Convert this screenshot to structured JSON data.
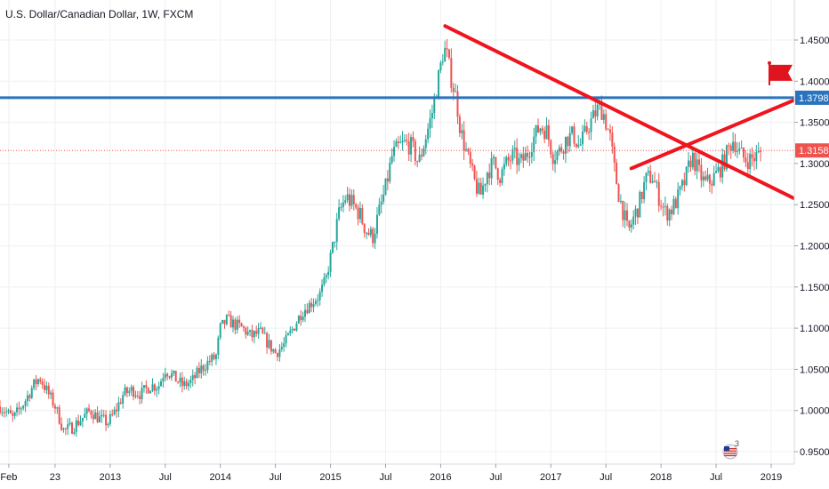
{
  "chart_data": {
    "type": "candlestick",
    "title": "U.S. Dollar/Canadian Dollar, 1W, FXCM",
    "xlabel": "",
    "ylabel": "",
    "ylim": [
      0.94,
      1.48
    ],
    "grid": true,
    "y_ticks": [
      "1.45000",
      "1.40000",
      "1.35000",
      "1.30000",
      "1.25000",
      "1.20000",
      "1.15000",
      "1.10000",
      "1.05000",
      "1.00000",
      "0.95000"
    ],
    "y_tick_values": [
      1.45,
      1.4,
      1.35,
      1.3,
      1.25,
      1.2,
      1.15,
      1.1,
      1.05,
      1.0,
      0.95
    ],
    "x_ticks": [
      "Feb",
      "23",
      "2013",
      "Jul",
      "2014",
      "Jul",
      "2015",
      "Jul",
      "2016",
      "Jul",
      "2017",
      "Jul",
      "2018",
      "Jul",
      "2019"
    ],
    "x_tick_values": [
      2012.08,
      2012.5,
      2013.0,
      2013.5,
      2014.0,
      2014.5,
      2015.0,
      2015.5,
      2016.0,
      2016.5,
      2017.0,
      2017.5,
      2018.0,
      2018.5,
      2019.0
    ],
    "xlim": [
      2012.0,
      2019.55
    ],
    "up_color": "#26a69a",
    "down_color": "#ef5350",
    "path": [
      [
        2012.0,
        1.005
      ],
      [
        2012.12,
        0.99
      ],
      [
        2012.22,
        1.01
      ],
      [
        2012.3,
        1.03
      ],
      [
        2012.36,
        1.04
      ],
      [
        2012.42,
        1.025
      ],
      [
        2012.5,
        1.005
      ],
      [
        2012.58,
        0.975
      ],
      [
        2012.66,
        0.98
      ],
      [
        2012.74,
        0.99
      ],
      [
        2012.82,
        1.0
      ],
      [
        2012.9,
        0.99
      ],
      [
        2012.98,
        0.985
      ],
      [
        2013.05,
        1.0
      ],
      [
        2013.12,
        1.02
      ],
      [
        2013.2,
        1.025
      ],
      [
        2013.28,
        1.02
      ],
      [
        2013.36,
        1.03
      ],
      [
        2013.44,
        1.03
      ],
      [
        2013.5,
        1.05
      ],
      [
        2013.58,
        1.04
      ],
      [
        2013.66,
        1.03
      ],
      [
        2013.74,
        1.035
      ],
      [
        2013.82,
        1.05
      ],
      [
        2013.9,
        1.06
      ],
      [
        2013.96,
        1.065
      ],
      [
        2014.0,
        1.1
      ],
      [
        2014.06,
        1.11
      ],
      [
        2014.12,
        1.105
      ],
      [
        2014.2,
        1.1
      ],
      [
        2014.28,
        1.09
      ],
      [
        2014.36,
        1.095
      ],
      [
        2014.44,
        1.08
      ],
      [
        2014.5,
        1.07
      ],
      [
        2014.58,
        1.08
      ],
      [
        2014.66,
        1.1
      ],
      [
        2014.74,
        1.12
      ],
      [
        2014.82,
        1.13
      ],
      [
        2014.9,
        1.14
      ],
      [
        2014.96,
        1.16
      ],
      [
        2015.02,
        1.2
      ],
      [
        2015.08,
        1.24
      ],
      [
        2015.14,
        1.26
      ],
      [
        2015.2,
        1.25
      ],
      [
        2015.26,
        1.24
      ],
      [
        2015.32,
        1.22
      ],
      [
        2015.38,
        1.21
      ],
      [
        2015.44,
        1.24
      ],
      [
        2015.5,
        1.27
      ],
      [
        2015.56,
        1.31
      ],
      [
        2015.62,
        1.32
      ],
      [
        2015.68,
        1.325
      ],
      [
        2015.74,
        1.32
      ],
      [
        2015.8,
        1.3
      ],
      [
        2015.86,
        1.33
      ],
      [
        2015.92,
        1.36
      ],
      [
        2015.96,
        1.39
      ],
      [
        2016.03,
        1.44
      ],
      [
        2016.06,
        1.43
      ],
      [
        2016.1,
        1.4
      ],
      [
        2016.14,
        1.38
      ],
      [
        2016.18,
        1.34
      ],
      [
        2016.24,
        1.31
      ],
      [
        2016.3,
        1.28
      ],
      [
        2016.36,
        1.26
      ],
      [
        2016.42,
        1.29
      ],
      [
        2016.48,
        1.3
      ],
      [
        2016.54,
        1.285
      ],
      [
        2016.6,
        1.3
      ],
      [
        2016.66,
        1.31
      ],
      [
        2016.72,
        1.3
      ],
      [
        2016.78,
        1.31
      ],
      [
        2016.84,
        1.33
      ],
      [
        2016.9,
        1.345
      ],
      [
        2016.96,
        1.34
      ],
      [
        2017.02,
        1.31
      ],
      [
        2017.08,
        1.315
      ],
      [
        2017.14,
        1.33
      ],
      [
        2017.2,
        1.335
      ],
      [
        2017.26,
        1.32
      ],
      [
        2017.34,
        1.345
      ],
      [
        2017.4,
        1.36
      ],
      [
        2017.44,
        1.37
      ],
      [
        2017.48,
        1.36
      ],
      [
        2017.54,
        1.33
      ],
      [
        2017.58,
        1.29
      ],
      [
        2017.62,
        1.26
      ],
      [
        2017.66,
        1.24
      ],
      [
        2017.7,
        1.215
      ],
      [
        2017.74,
        1.23
      ],
      [
        2017.8,
        1.25
      ],
      [
        2017.86,
        1.28
      ],
      [
        2017.92,
        1.285
      ],
      [
        2017.98,
        1.26
      ],
      [
        2018.04,
        1.24
      ],
      [
        2018.1,
        1.245
      ],
      [
        2018.16,
        1.26
      ],
      [
        2018.22,
        1.28
      ],
      [
        2018.28,
        1.31
      ],
      [
        2018.34,
        1.29
      ],
      [
        2018.4,
        1.275
      ],
      [
        2018.46,
        1.28
      ],
      [
        2018.52,
        1.29
      ],
      [
        2018.58,
        1.305
      ],
      [
        2018.62,
        1.32
      ],
      [
        2018.66,
        1.33
      ],
      [
        2018.7,
        1.315
      ],
      [
        2018.76,
        1.305
      ],
      [
        2018.82,
        1.305
      ],
      [
        2018.88,
        1.31
      ],
      [
        2018.92,
        1.315
      ]
    ],
    "horizontal_line": {
      "value": 1.37989,
      "label": "1.37989",
      "color": "#2a74bd"
    },
    "current_price": {
      "value": 1.31583,
      "label": "1.31583",
      "color": "#ef5350"
    },
    "trendlines": [
      {
        "name": "",
        "from": [
          2016.04,
          1.467
        ],
        "to": [
          2019.55,
          1.235
        ],
        "color": "#f0141e"
      },
      {
        "name": "",
        "from": [
          2017.73,
          1.294
        ],
        "to": [
          2019.53,
          1.395
        ],
        "color": "#f0141e"
      }
    ],
    "flag_icon": "red-flag-icon",
    "events_badge": {
      "icon": "us-flag-icon",
      "count": "3"
    }
  }
}
